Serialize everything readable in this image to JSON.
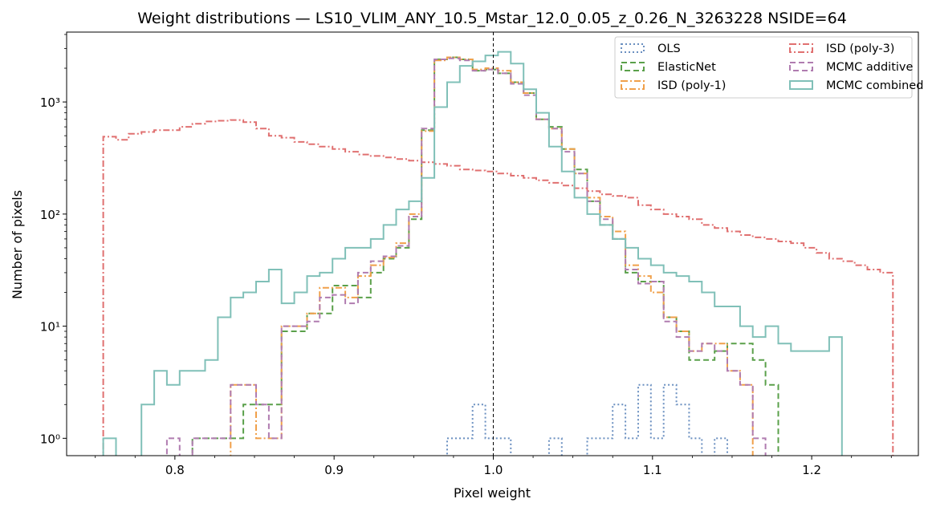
{
  "chart_data": {
    "type": "histogram",
    "title": "Weight distributions — LS10_VLIM_ANY_10.5_Mstar_12.0_0.05_z_0.26_N_3263228  NSIDE=64",
    "xlabel": "Pixel weight",
    "ylabel": "Number of pixels",
    "xlim": [
      0.732,
      1.267
    ],
    "ylim": [
      0.7,
      4200
    ],
    "yscale": "log",
    "xticks": [
      0.8,
      0.9,
      1.0,
      1.1,
      1.2
    ],
    "xtick_labels": [
      "0.8",
      "0.9",
      "1.0",
      "1.1",
      "1.2"
    ],
    "yticks": [
      1,
      10,
      100,
      1000
    ],
    "ytick_labels": [
      "10⁰",
      "10¹",
      "10²",
      "10³"
    ],
    "grid": false,
    "legend_position": "top-right",
    "reference_line": {
      "x": 1.0,
      "style": "dashed",
      "color": "#000000"
    },
    "bins": {
      "start": 0.755,
      "width": 0.008
    },
    "series": [
      {
        "name": "OLS",
        "color": "#6a8fc0",
        "style": "dotted",
        "values": [
          0,
          0,
          0,
          0,
          0,
          0,
          0,
          0,
          0,
          0,
          0,
          0,
          0,
          0,
          0,
          0,
          0,
          0,
          0,
          0,
          0,
          0,
          0,
          0,
          0,
          0,
          0,
          1,
          1,
          2,
          1,
          1,
          0,
          0,
          0,
          1,
          0,
          0,
          1,
          1,
          2,
          1,
          3,
          1,
          3,
          2,
          1,
          0,
          1,
          0,
          0,
          0,
          0,
          0,
          0,
          0,
          0,
          0,
          0,
          0,
          0,
          0
        ]
      },
      {
        "name": "ElasticNet",
        "color": "#5aa04a",
        "style": "dashed",
        "values": [
          0,
          0,
          0,
          0,
          0,
          0,
          0,
          1,
          1,
          1,
          1,
          2,
          2,
          2,
          9,
          9,
          13,
          13,
          23,
          23,
          18,
          30,
          40,
          50,
          90,
          560,
          2400,
          2500,
          2400,
          1900,
          1950,
          1800,
          1500,
          1200,
          700,
          600,
          380,
          250,
          130,
          80,
          60,
          30,
          25,
          25,
          12,
          9,
          5,
          5,
          6,
          7,
          7,
          5,
          3,
          0,
          0,
          0,
          0,
          0,
          0,
          0,
          0,
          0
        ]
      },
      {
        "name": "ISD (poly-1)",
        "color": "#f0a04a",
        "style": "dashdot",
        "values": [
          0,
          0,
          0,
          0,
          0,
          0,
          0,
          0,
          0,
          0,
          3,
          3,
          1,
          1,
          10,
          10,
          13,
          22,
          22,
          18,
          28,
          35,
          41,
          55,
          100,
          550,
          2350,
          2500,
          2400,
          1950,
          2000,
          1900,
          1500,
          1200,
          700,
          580,
          380,
          230,
          140,
          95,
          70,
          35,
          28,
          20,
          12,
          9,
          6,
          7,
          7,
          4,
          3,
          0,
          0,
          0,
          0,
          0,
          0,
          0,
          0,
          0,
          0,
          0
        ]
      },
      {
        "name": "ISD (poly-3)",
        "color": "#e07070",
        "style": "dashdot",
        "values": [
          490,
          460,
          520,
          540,
          560,
          560,
          600,
          640,
          670,
          680,
          690,
          660,
          580,
          500,
          480,
          440,
          420,
          400,
          380,
          360,
          340,
          330,
          320,
          310,
          300,
          290,
          280,
          270,
          250,
          245,
          240,
          230,
          220,
          210,
          200,
          190,
          180,
          170,
          160,
          150,
          145,
          140,
          120,
          110,
          100,
          95,
          90,
          80,
          75,
          70,
          65,
          62,
          60,
          57,
          55,
          50,
          45,
          40,
          38,
          35,
          32,
          30
        ]
      },
      {
        "name": "MCMC additive",
        "color": "#b07cb0",
        "style": "dashed",
        "values": [
          0,
          0,
          0,
          0,
          0,
          1,
          0,
          1,
          1,
          1,
          3,
          3,
          2,
          1,
          10,
          10,
          11,
          18,
          19,
          16,
          30,
          38,
          42,
          52,
          95,
          580,
          2400,
          2450,
          2350,
          1900,
          1950,
          1800,
          1450,
          1150,
          700,
          580,
          360,
          230,
          130,
          90,
          60,
          32,
          24,
          25,
          11,
          8,
          6,
          7,
          6,
          4,
          3,
          1,
          0,
          0,
          0,
          0,
          0,
          0,
          0,
          0,
          0,
          0
        ]
      },
      {
        "name": "MCMC combined",
        "color": "#80c0b8",
        "style": "solid",
        "values": [
          1,
          0,
          0,
          2,
          4,
          3,
          4,
          4,
          5,
          12,
          18,
          20,
          25,
          32,
          16,
          20,
          28,
          30,
          40,
          50,
          50,
          60,
          80,
          110,
          130,
          210,
          900,
          1500,
          2100,
          2300,
          2600,
          2800,
          2200,
          1300,
          800,
          400,
          240,
          140,
          100,
          80,
          60,
          50,
          40,
          35,
          30,
          28,
          25,
          20,
          15,
          15,
          10,
          8,
          10,
          7,
          6,
          6,
          6,
          8,
          0,
          0,
          0,
          0
        ]
      }
    ]
  }
}
